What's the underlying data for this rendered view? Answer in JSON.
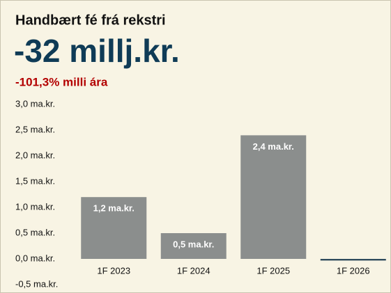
{
  "chart_data": {
    "type": "bar",
    "title": "Handbært fé frá rekstri",
    "headline": "-32 millj.kr.",
    "subtitle": "-101,3% milli ára",
    "categories": [
      "1F 2023",
      "1F 2024",
      "1F 2025",
      "1F 2026"
    ],
    "values": [
      1.2,
      0.5,
      2.4,
      -0.032
    ],
    "value_labels": [
      "1,2 ma.kr.",
      "0,5 ma.kr.",
      "2,4 ma.kr.",
      null
    ],
    "colors": [
      "#8b8e8d",
      "#8b8e8d",
      "#8b8e8d",
      "#2f4a5c"
    ],
    "ylim": [
      -0.5,
      3.0
    ],
    "yticks": [
      {
        "value": -0.5,
        "label": "-0,5 ma.kr."
      },
      {
        "value": 0,
        "label": "0,0 ma.kr."
      },
      {
        "value": 0.5,
        "label": "0,5 ma.kr."
      },
      {
        "value": 1.0,
        "label": "1,0 ma.kr."
      },
      {
        "value": 1.5,
        "label": "1,5 ma.kr."
      },
      {
        "value": 2.0,
        "label": "2,0 ma.kr."
      },
      {
        "value": 2.5,
        "label": "2,5 ma.kr."
      },
      {
        "value": 3.0,
        "label": "3,0 ma.kr."
      }
    ],
    "grid": false
  }
}
